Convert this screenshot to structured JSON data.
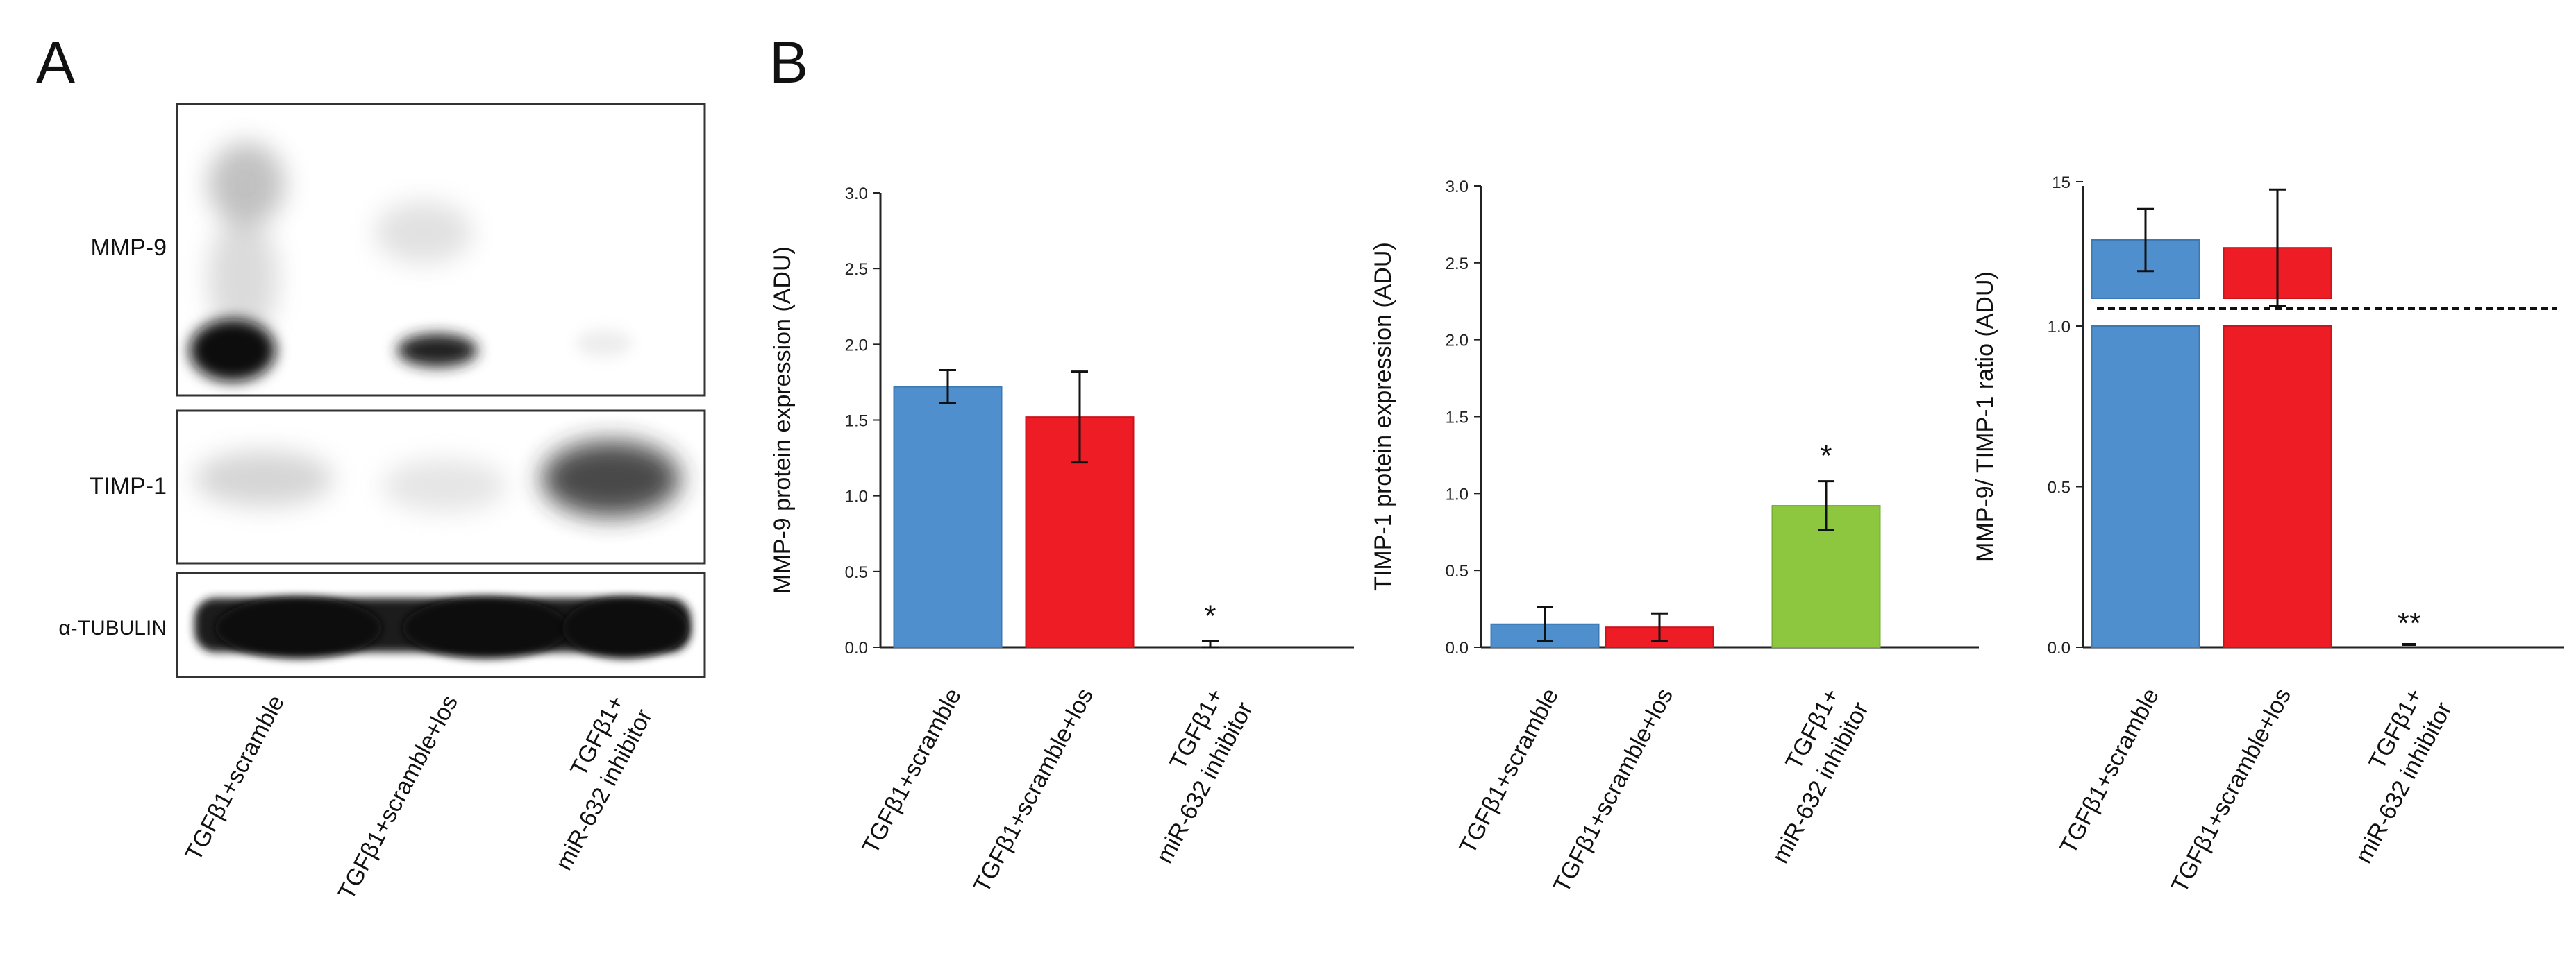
{
  "panels": {
    "a": "A",
    "b": "B"
  },
  "blot": {
    "rows": [
      {
        "label": "MMP-9"
      },
      {
        "label": "TIMP-1"
      },
      {
        "label": "α-TUBULIN"
      }
    ],
    "lanes": [
      {
        "line1": "TGFβ1+scramble",
        "line2": ""
      },
      {
        "line1": "TGFβ1+scramble+los",
        "line2": ""
      },
      {
        "line1": "TGFβ1+",
        "line2": "miR-632 inhibitor"
      }
    ]
  },
  "chart_data": [
    {
      "type": "bar",
      "categories": [
        "TGFβ1+scramble",
        "TGFβ1+scramble+los",
        "TGFβ1+\nmiR-632 inhibitor"
      ],
      "values": [
        1.72,
        1.52,
        0.02
      ],
      "errors": [
        0.11,
        0.3,
        0.02
      ],
      "colors": [
        "#4f8fcd",
        "#ee1c25",
        "#8dc63f"
      ],
      "significance": [
        "",
        "",
        "*"
      ],
      "ylabel": "MMP-9 protein expression (ADU)",
      "ylim": [
        0,
        3.0
      ],
      "yticks": [
        "0.0",
        "0.5",
        "1.0",
        "1.5",
        "2.0",
        "2.5",
        "3.0"
      ]
    },
    {
      "type": "bar",
      "categories": [
        "TGFβ1+scramble",
        "TGFβ1+scramble+los",
        "TGFβ1+\nmiR-632 inhibitor"
      ],
      "values": [
        0.15,
        0.13,
        0.92
      ],
      "errors": [
        0.11,
        0.09,
        0.16
      ],
      "colors": [
        "#4f8fcd",
        "#ee1c25",
        "#8dc63f"
      ],
      "significance": [
        "",
        "",
        "*"
      ],
      "ylabel": "TIMP-1 protein expression (ADU)",
      "ylim": [
        0,
        3.0
      ],
      "yticks": [
        "0.0",
        "0.5",
        "1.0",
        "1.5",
        "2.0",
        "2.5",
        "3.0"
      ]
    },
    {
      "type": "bar",
      "broken_axis": true,
      "categories": [
        "TGFβ1+scramble",
        "TGFβ1+scramble+los",
        "TGFβ1+\nmiR-632 inhibitor"
      ],
      "values": [
        13.5,
        13.3,
        0.005
      ],
      "errors": [
        0.8,
        1.5,
        0.0
      ],
      "colors": [
        "#4f8fcd",
        "#ee1c25",
        "#8dc63f"
      ],
      "significance": [
        "",
        "",
        "**"
      ],
      "ylabel": "MMP-9/ TIMP-1 ratio (ADU)",
      "yticks": [
        "0.0",
        "0.5",
        "1.0",
        "15"
      ]
    }
  ]
}
